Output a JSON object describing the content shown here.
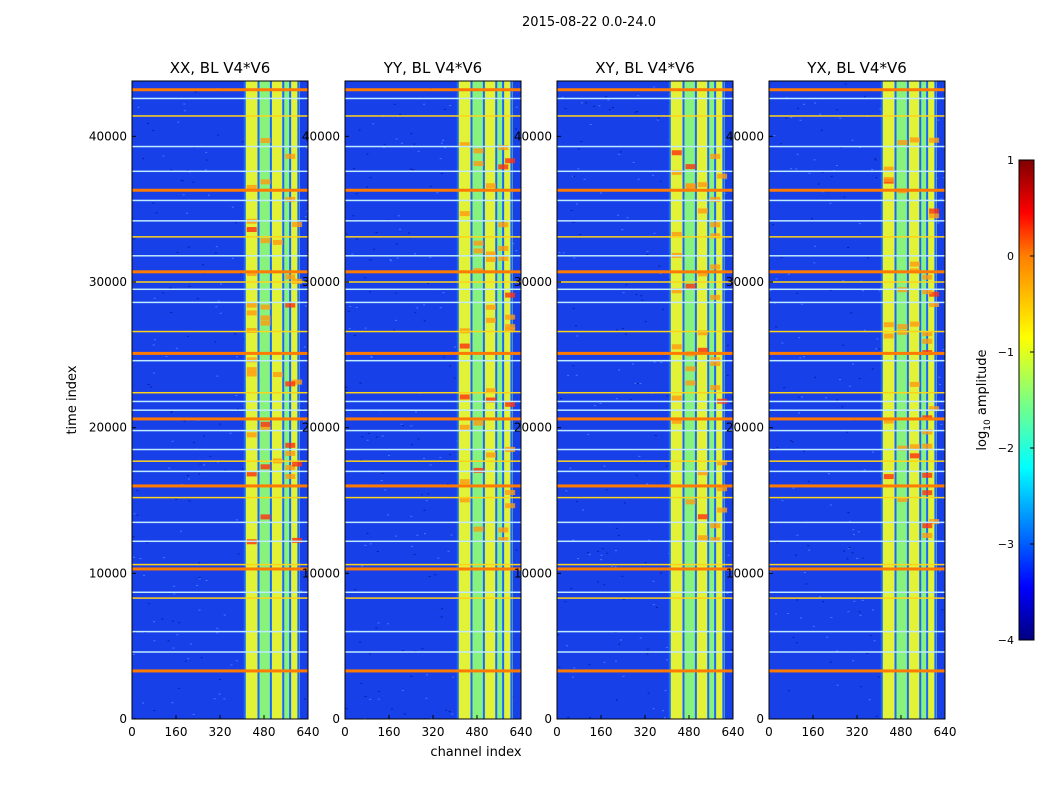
{
  "chart_data": {
    "type": "heatmap",
    "suptitle": "2015-08-22 0.0-24.0",
    "xlabel": "channel index",
    "ylabel": "time index",
    "xlim": [
      0,
      640
    ],
    "ylim": [
      0,
      43800
    ],
    "xticks": [
      0,
      160,
      320,
      480,
      640
    ],
    "yticks": [
      0,
      10000,
      20000,
      30000,
      40000
    ],
    "panels": [
      {
        "title": "XX, BL V4*V6",
        "product": "XX"
      },
      {
        "title": "YY, BL V4*V6",
        "product": "YY"
      },
      {
        "title": "XY, BL V4*V6",
        "product": "XY"
      },
      {
        "title": "YX, BL V4*V6",
        "product": "YX"
      }
    ],
    "band": {
      "channel_range": [
        410,
        610
      ],
      "sub_band_edges": [
        410,
        460,
        505,
        550,
        575,
        605
      ]
    },
    "flagged_time_rows": [
      3300,
      4600,
      6000,
      8300,
      8700,
      10300,
      10600,
      12200,
      13500,
      15200,
      16000,
      17000,
      17700,
      18500,
      19800,
      20600,
      21200,
      21800,
      22400,
      24600,
      25100,
      26600,
      28600,
      29500,
      30000,
      30700,
      31800,
      33100,
      34200,
      35600,
      36300,
      37600,
      39300,
      41400,
      42600,
      43200
    ],
    "colorbar": {
      "label": "log",
      "label_sub": "10",
      "label_suffix": " amplitude",
      "range": [
        -4,
        1
      ],
      "ticks": [
        {
          "value": -4,
          "label": "−4"
        },
        {
          "value": -3,
          "label": "−3"
        },
        {
          "value": -2,
          "label": "−2"
        },
        {
          "value": -1,
          "label": "−1"
        },
        {
          "value": 0,
          "label": "0"
        },
        {
          "value": 1,
          "label": "1"
        }
      ],
      "colormap": "jet"
    }
  }
}
